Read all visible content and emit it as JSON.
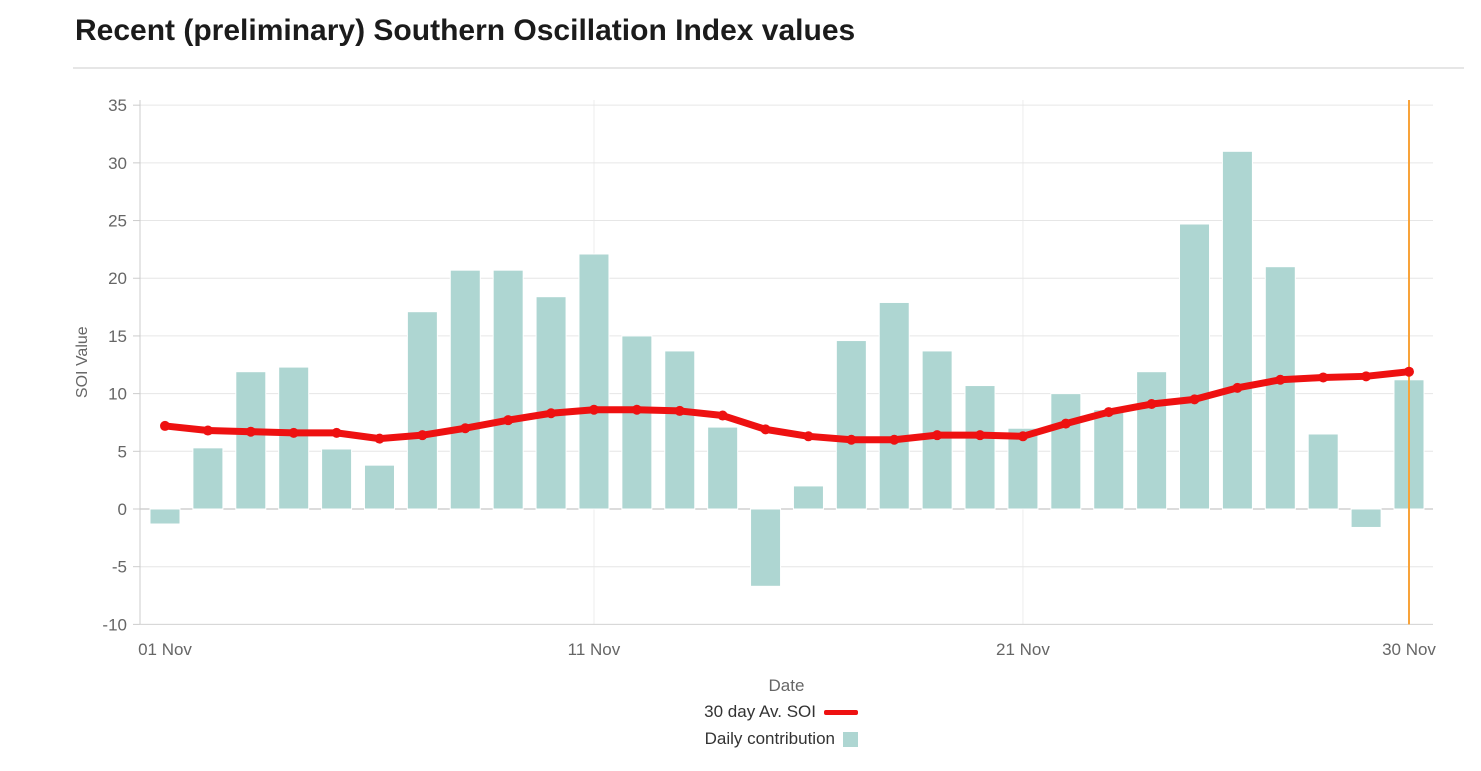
{
  "title": "Recent (preliminary) Southern Oscillation Index values",
  "chart_data": {
    "type": "bar",
    "subtype": "bar-and-line-combo",
    "title": "Recent (preliminary) Southern Oscillation Index values",
    "xlabel": "Date",
    "ylabel": "SOI Value",
    "ylim": [
      -10,
      35
    ],
    "ytick_step": 5,
    "ytick_labels": [
      "-10",
      "-5",
      "0",
      "5",
      "10",
      "15",
      "20",
      "25",
      "30",
      "35"
    ],
    "grid": true,
    "legend_position": "bottom-center",
    "categories": [
      "01 Nov",
      "02 Nov",
      "03 Nov",
      "04 Nov",
      "05 Nov",
      "06 Nov",
      "07 Nov",
      "08 Nov",
      "09 Nov",
      "10 Nov",
      "11 Nov",
      "12 Nov",
      "13 Nov",
      "14 Nov",
      "15 Nov",
      "16 Nov",
      "17 Nov",
      "18 Nov",
      "19 Nov",
      "20 Nov",
      "21 Nov",
      "22 Nov",
      "23 Nov",
      "24 Nov",
      "25 Nov",
      "26 Nov",
      "27 Nov",
      "28 Nov",
      "29 Nov",
      "30 Nov"
    ],
    "x_tick_labels": [
      "01 Nov",
      "11 Nov",
      "21 Nov",
      "30 Nov"
    ],
    "x_tick_indices": [
      0,
      10,
      20,
      29
    ],
    "series": [
      {
        "name": "30 day Av. SOI",
        "type": "line",
        "color": "#ee1111",
        "values": [
          7.2,
          6.8,
          6.7,
          6.6,
          6.6,
          6.1,
          6.4,
          7.0,
          7.7,
          8.3,
          8.6,
          8.6,
          8.5,
          8.1,
          6.9,
          6.3,
          6.0,
          6.0,
          6.4,
          6.4,
          6.3,
          7.4,
          8.4,
          9.1,
          9.5,
          10.5,
          11.2,
          11.4,
          11.5,
          11.9
        ]
      },
      {
        "name": "Daily contribution",
        "type": "bar",
        "color": "#aed6d2",
        "values": [
          -1.3,
          5.3,
          11.9,
          12.3,
          5.2,
          3.8,
          17.1,
          20.7,
          20.7,
          18.4,
          22.1,
          15.0,
          13.7,
          7.1,
          -6.7,
          2.0,
          14.6,
          17.9,
          13.7,
          10.7,
          7.0,
          10.0,
          8.6,
          11.9,
          24.7,
          31.0,
          21.0,
          6.5,
          -1.6,
          11.2
        ]
      }
    ],
    "annotations": {
      "vertical_line": {
        "x_label": "30 Nov",
        "color": "#f8a33a"
      }
    },
    "colors": {
      "gridline": "#e6e6e6",
      "zero_line": "#b8b8b8",
      "axis_line": "#cccccc",
      "tick_label": "#666666",
      "axis_title": "#666666"
    }
  },
  "legend": {
    "items": [
      {
        "label": "30 day Av. SOI"
      },
      {
        "label": "Daily contribution"
      }
    ]
  }
}
